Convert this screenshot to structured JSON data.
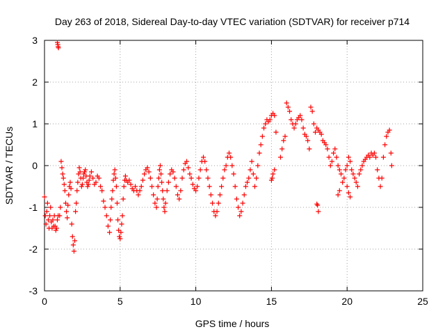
{
  "chart_data": {
    "type": "scatter",
    "title": "Day 263 of 2018, Sidereal Day-to-day VTEC variation (SDTVAR) for receiver p714",
    "xlabel": "GPS time / hours",
    "ylabel": "SDTVAR / TECUs",
    "xlim": [
      0,
      25
    ],
    "ylim": [
      -3,
      3
    ],
    "xticks": [
      "0",
      "5",
      "10",
      "15",
      "20",
      "25"
    ],
    "yticks": [
      "-3",
      "-2",
      "-1",
      "0",
      "1",
      "2",
      "3"
    ],
    "grid": true,
    "marker": "+",
    "series": [
      {
        "name": "p714",
        "color": "#ff0000",
        "points": [
          [
            0.0,
            -0.75
          ],
          [
            0.05,
            -1.2
          ],
          [
            0.1,
            -1.4
          ],
          [
            0.15,
            -1.1
          ],
          [
            0.2,
            -0.9
          ],
          [
            0.25,
            -1.3
          ],
          [
            0.3,
            -1.5
          ],
          [
            0.35,
            -1.2
          ],
          [
            0.4,
            -1.0
          ],
          [
            0.45,
            -1.35
          ],
          [
            0.5,
            -1.5
          ],
          [
            0.55,
            -1.3
          ],
          [
            0.6,
            -1.45
          ],
          [
            0.65,
            -1.2
          ],
          [
            0.7,
            -1.45
          ],
          [
            0.75,
            -1.55
          ],
          [
            0.8,
            -1.5
          ],
          [
            0.85,
            -1.3
          ],
          [
            0.9,
            -1.2
          ],
          [
            0.85,
            2.95
          ],
          [
            0.88,
            2.9
          ],
          [
            0.9,
            2.85
          ],
          [
            0.92,
            2.82
          ],
          [
            1.0,
            -1.2
          ],
          [
            1.05,
            -1.0
          ],
          [
            1.1,
            0.1
          ],
          [
            1.15,
            -0.05
          ],
          [
            1.2,
            -0.2
          ],
          [
            1.25,
            -0.3
          ],
          [
            1.3,
            -0.45
          ],
          [
            1.35,
            -0.6
          ],
          [
            1.4,
            -0.9
          ],
          [
            1.45,
            -1.1
          ],
          [
            1.5,
            -1.25
          ],
          [
            1.55,
            -0.95
          ],
          [
            1.6,
            -0.7
          ],
          [
            1.65,
            -0.5
          ],
          [
            1.7,
            -0.4
          ],
          [
            1.75,
            -0.55
          ],
          [
            1.8,
            -1.4
          ],
          [
            1.85,
            -1.7
          ],
          [
            1.9,
            -1.9
          ],
          [
            1.95,
            -2.05
          ],
          [
            2.0,
            -1.8
          ],
          [
            2.05,
            -1.1
          ],
          [
            2.1,
            -0.9
          ],
          [
            2.15,
            -0.6
          ],
          [
            2.2,
            -0.4
          ],
          [
            2.25,
            -0.2
          ],
          [
            2.3,
            -0.05
          ],
          [
            2.35,
            -0.15
          ],
          [
            2.4,
            -0.3
          ],
          [
            2.45,
            -0.5
          ],
          [
            2.5,
            -0.45
          ],
          [
            2.55,
            -0.3
          ],
          [
            2.6,
            -0.2
          ],
          [
            2.65,
            -0.15
          ],
          [
            2.7,
            -0.1
          ],
          [
            2.75,
            -0.25
          ],
          [
            2.8,
            -0.4
          ],
          [
            2.85,
            -0.5
          ],
          [
            2.9,
            -0.45
          ],
          [
            2.95,
            -0.35
          ],
          [
            3.0,
            -0.25
          ],
          [
            3.1,
            -0.15
          ],
          [
            3.2,
            -0.3
          ],
          [
            3.3,
            -0.45
          ],
          [
            3.4,
            -0.4
          ],
          [
            3.5,
            -0.25
          ],
          [
            3.6,
            -0.3
          ],
          [
            3.7,
            -0.5
          ],
          [
            3.8,
            -0.6
          ],
          [
            3.9,
            -0.85
          ],
          [
            4.0,
            -1.0
          ],
          [
            4.1,
            -1.2
          ],
          [
            4.2,
            -1.45
          ],
          [
            4.3,
            -1.6
          ],
          [
            4.35,
            -1.3
          ],
          [
            4.4,
            -1.0
          ],
          [
            4.45,
            -0.8
          ],
          [
            4.5,
            -0.6
          ],
          [
            4.55,
            -0.35
          ],
          [
            4.6,
            -0.2
          ],
          [
            4.65,
            -0.1
          ],
          [
            4.7,
            -0.3
          ],
          [
            4.75,
            -0.5
          ],
          [
            4.8,
            -0.9
          ],
          [
            4.85,
            -1.3
          ],
          [
            4.9,
            -1.55
          ],
          [
            4.95,
            -1.7
          ],
          [
            5.0,
            -1.75
          ],
          [
            5.05,
            -1.6
          ],
          [
            5.1,
            -1.4
          ],
          [
            5.15,
            -1.2
          ],
          [
            5.2,
            -0.8
          ],
          [
            5.25,
            -0.5
          ],
          [
            5.3,
            -0.35
          ],
          [
            5.35,
            -0.25
          ],
          [
            5.4,
            -0.35
          ],
          [
            5.5,
            -0.4
          ],
          [
            5.6,
            -0.35
          ],
          [
            5.7,
            -0.45
          ],
          [
            5.8,
            -0.55
          ],
          [
            5.9,
            -0.6
          ],
          [
            6.0,
            -0.5
          ],
          [
            6.1,
            -0.6
          ],
          [
            6.2,
            -0.7
          ],
          [
            6.3,
            -0.6
          ],
          [
            6.4,
            -0.5
          ],
          [
            6.5,
            -0.35
          ],
          [
            6.6,
            -0.2
          ],
          [
            6.7,
            -0.1
          ],
          [
            6.8,
            -0.05
          ],
          [
            6.9,
            -0.15
          ],
          [
            7.0,
            -0.3
          ],
          [
            7.1,
            -0.5
          ],
          [
            7.2,
            -0.7
          ],
          [
            7.3,
            -0.9
          ],
          [
            7.4,
            -1.0
          ],
          [
            7.45,
            -0.8
          ],
          [
            7.5,
            -0.5
          ],
          [
            7.55,
            -0.3
          ],
          [
            7.6,
            -0.1
          ],
          [
            7.65,
            0.0
          ],
          [
            7.7,
            -0.2
          ],
          [
            7.75,
            -0.4
          ],
          [
            7.8,
            -0.6
          ],
          [
            7.85,
            -0.8
          ],
          [
            7.9,
            -1.0
          ],
          [
            7.95,
            -1.1
          ],
          [
            8.0,
            -0.9
          ],
          [
            8.1,
            -0.6
          ],
          [
            8.2,
            -0.4
          ],
          [
            8.3,
            -0.2
          ],
          [
            8.4,
            -0.1
          ],
          [
            8.5,
            -0.15
          ],
          [
            8.6,
            -0.3
          ],
          [
            8.7,
            -0.5
          ],
          [
            8.8,
            -0.7
          ],
          [
            8.9,
            -0.8
          ],
          [
            9.0,
            -0.6
          ],
          [
            9.1,
            -0.3
          ],
          [
            9.2,
            -0.1
          ],
          [
            9.3,
            0.05
          ],
          [
            9.4,
            0.1
          ],
          [
            9.5,
            -0.05
          ],
          [
            9.6,
            -0.2
          ],
          [
            9.7,
            -0.3
          ],
          [
            9.8,
            -0.45
          ],
          [
            9.9,
            -0.55
          ],
          [
            10.0,
            -0.6
          ],
          [
            10.1,
            -0.5
          ],
          [
            10.2,
            -0.3
          ],
          [
            10.3,
            -0.1
          ],
          [
            10.4,
            0.1
          ],
          [
            10.5,
            0.2
          ],
          [
            10.6,
            0.1
          ],
          [
            10.7,
            -0.1
          ],
          [
            10.8,
            -0.3
          ],
          [
            10.9,
            -0.5
          ],
          [
            11.0,
            -0.7
          ],
          [
            11.1,
            -0.9
          ],
          [
            11.2,
            -1.1
          ],
          [
            11.3,
            -1.2
          ],
          [
            11.4,
            -1.1
          ],
          [
            11.5,
            -0.9
          ],
          [
            11.6,
            -0.7
          ],
          [
            11.7,
            -0.5
          ],
          [
            11.8,
            -0.3
          ],
          [
            11.9,
            -0.1
          ],
          [
            12.0,
            0.0
          ],
          [
            12.1,
            0.2
          ],
          [
            12.2,
            0.3
          ],
          [
            12.3,
            0.2
          ],
          [
            12.4,
            0.0
          ],
          [
            12.5,
            -0.2
          ],
          [
            12.6,
            -0.5
          ],
          [
            12.7,
            -0.8
          ],
          [
            12.8,
            -1.0
          ],
          [
            12.9,
            -1.2
          ],
          [
            13.0,
            -1.1
          ],
          [
            13.1,
            -0.9
          ],
          [
            13.2,
            -0.7
          ],
          [
            13.3,
            -0.5
          ],
          [
            13.4,
            -0.4
          ],
          [
            13.5,
            -0.3
          ],
          [
            13.6,
            -0.1
          ],
          [
            13.7,
            0.1
          ],
          [
            13.8,
            -0.2
          ],
          [
            13.9,
            -0.5
          ],
          [
            14.0,
            -0.3
          ],
          [
            14.1,
            0.0
          ],
          [
            14.2,
            0.3
          ],
          [
            14.3,
            0.5
          ],
          [
            14.4,
            0.7
          ],
          [
            14.5,
            0.9
          ],
          [
            14.6,
            1.0
          ],
          [
            14.7,
            1.1
          ],
          [
            14.8,
            1.05
          ],
          [
            14.9,
            1.1
          ],
          [
            15.0,
            1.2
          ],
          [
            15.1,
            1.25
          ],
          [
            15.2,
            1.2
          ],
          [
            15.3,
            0.8
          ],
          [
            15.0,
            -0.35
          ],
          [
            15.05,
            -0.3
          ],
          [
            15.1,
            -0.2
          ],
          [
            15.2,
            -0.1
          ],
          [
            15.6,
            0.2
          ],
          [
            15.7,
            0.4
          ],
          [
            15.8,
            0.6
          ],
          [
            15.9,
            0.7
          ],
          [
            16.0,
            1.5
          ],
          [
            16.1,
            1.4
          ],
          [
            16.2,
            1.3
          ],
          [
            16.3,
            1.1
          ],
          [
            16.4,
            1.0
          ],
          [
            16.5,
            0.9
          ],
          [
            16.6,
            1.0
          ],
          [
            16.7,
            1.1
          ],
          [
            16.8,
            1.15
          ],
          [
            16.9,
            1.2
          ],
          [
            17.0,
            1.1
          ],
          [
            17.1,
            0.9
          ],
          [
            17.2,
            0.75
          ],
          [
            17.3,
            0.7
          ],
          [
            17.4,
            0.6
          ],
          [
            17.5,
            0.4
          ],
          [
            17.6,
            1.4
          ],
          [
            17.7,
            1.3
          ],
          [
            17.8,
            1.0
          ],
          [
            17.9,
            0.8
          ],
          [
            18.0,
            0.9
          ],
          [
            18.1,
            0.85
          ],
          [
            18.2,
            0.8
          ],
          [
            18.3,
            0.75
          ],
          [
            18.4,
            0.6
          ],
          [
            18.5,
            0.55
          ],
          [
            18.6,
            0.5
          ],
          [
            18.7,
            0.4
          ],
          [
            18.8,
            0.2
          ],
          [
            18.9,
            0.0
          ],
          [
            19.0,
            0.1
          ],
          [
            19.1,
            0.3
          ],
          [
            19.2,
            0.4
          ],
          [
            19.3,
            0.2
          ],
          [
            19.4,
            0.0
          ],
          [
            19.5,
            -0.1
          ],
          [
            19.6,
            -0.2
          ],
          [
            19.7,
            -0.4
          ],
          [
            19.8,
            -0.3
          ],
          [
            19.9,
            -0.1
          ],
          [
            20.0,
            0.0
          ],
          [
            20.1,
            0.2
          ],
          [
            20.2,
            0.1
          ],
          [
            20.3,
            -0.1
          ],
          [
            20.4,
            -0.2
          ],
          [
            20.5,
            -0.3
          ],
          [
            20.6,
            -0.4
          ],
          [
            20.7,
            -0.5
          ],
          [
            20.8,
            -0.2
          ],
          [
            20.9,
            -0.1
          ],
          [
            21.0,
            0.0
          ],
          [
            21.1,
            0.1
          ],
          [
            21.2,
            0.15
          ],
          [
            21.3,
            0.2
          ],
          [
            21.4,
            0.25
          ],
          [
            21.5,
            0.2
          ],
          [
            21.6,
            0.3
          ],
          [
            21.7,
            0.25
          ],
          [
            21.8,
            0.3
          ],
          [
            21.9,
            0.2
          ],
          [
            22.0,
            -0.1
          ],
          [
            22.1,
            -0.3
          ],
          [
            22.2,
            -0.5
          ],
          [
            22.3,
            -0.3
          ],
          [
            22.4,
            0.2
          ],
          [
            22.5,
            0.5
          ],
          [
            22.6,
            0.7
          ],
          [
            22.7,
            0.8
          ],
          [
            22.8,
            0.85
          ],
          [
            22.9,
            0.3
          ],
          [
            22.95,
            0.0
          ],
          [
            18.05,
            -0.95
          ],
          [
            18.1,
            -1.1
          ],
          [
            18.0,
            -0.92
          ],
          [
            19.4,
            -0.7
          ],
          [
            19.5,
            -0.6
          ],
          [
            20.0,
            -0.5
          ],
          [
            20.1,
            -0.65
          ],
          [
            20.2,
            -0.75
          ]
        ]
      }
    ]
  }
}
